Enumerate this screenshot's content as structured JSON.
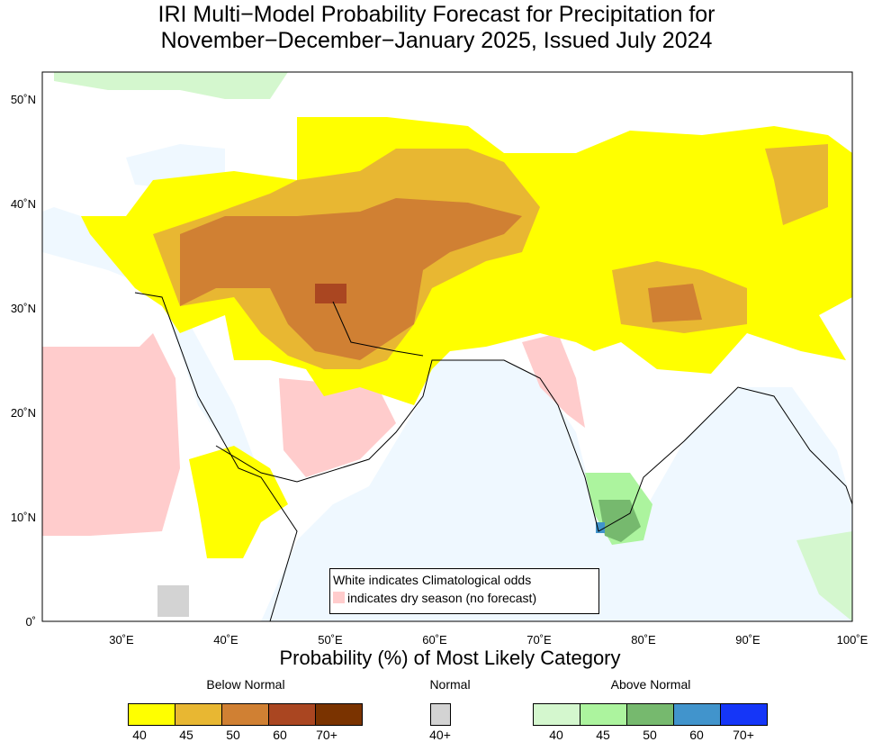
{
  "title_line1": "IRI Multi−Model Probability Forecast for Precipitation for",
  "title_line2": "November−December−January 2025, Issued July 2024",
  "map": {
    "lat_labels": [
      "50˚N",
      "40˚N",
      "30˚N",
      "20˚N",
      "10˚N",
      "0˚"
    ],
    "lon_labels": [
      "30˚E",
      "40˚E",
      "50˚E",
      "60˚E",
      "70˚E",
      "80˚E",
      "90˚E",
      "100˚E"
    ],
    "note_line1": "White indicates Climatological odds",
    "note_line2": "indicates dry season (no forecast)",
    "dry_season_color": "#ffcccc",
    "ocean_color": "#eff8ff"
  },
  "legend": {
    "title": "Probability (%) of Most Likely Category",
    "below": {
      "label": "Below Normal",
      "colors": [
        "#ffff00",
        "#e8b732",
        "#d08033",
        "#aa4621",
        "#7a3300"
      ],
      "ticks": [
        "40",
        "45",
        "50",
        "60",
        "70+"
      ]
    },
    "normal": {
      "label": "Normal",
      "colors": [
        "#d3d3d3"
      ],
      "ticks": [
        "40+"
      ]
    },
    "above": {
      "label": "Above Normal",
      "colors": [
        "#d4f7ce",
        "#acf49e",
        "#76b96e",
        "#4194cc",
        "#1536f8"
      ],
      "ticks": [
        "40",
        "45",
        "50",
        "60",
        "70+"
      ]
    }
  }
}
